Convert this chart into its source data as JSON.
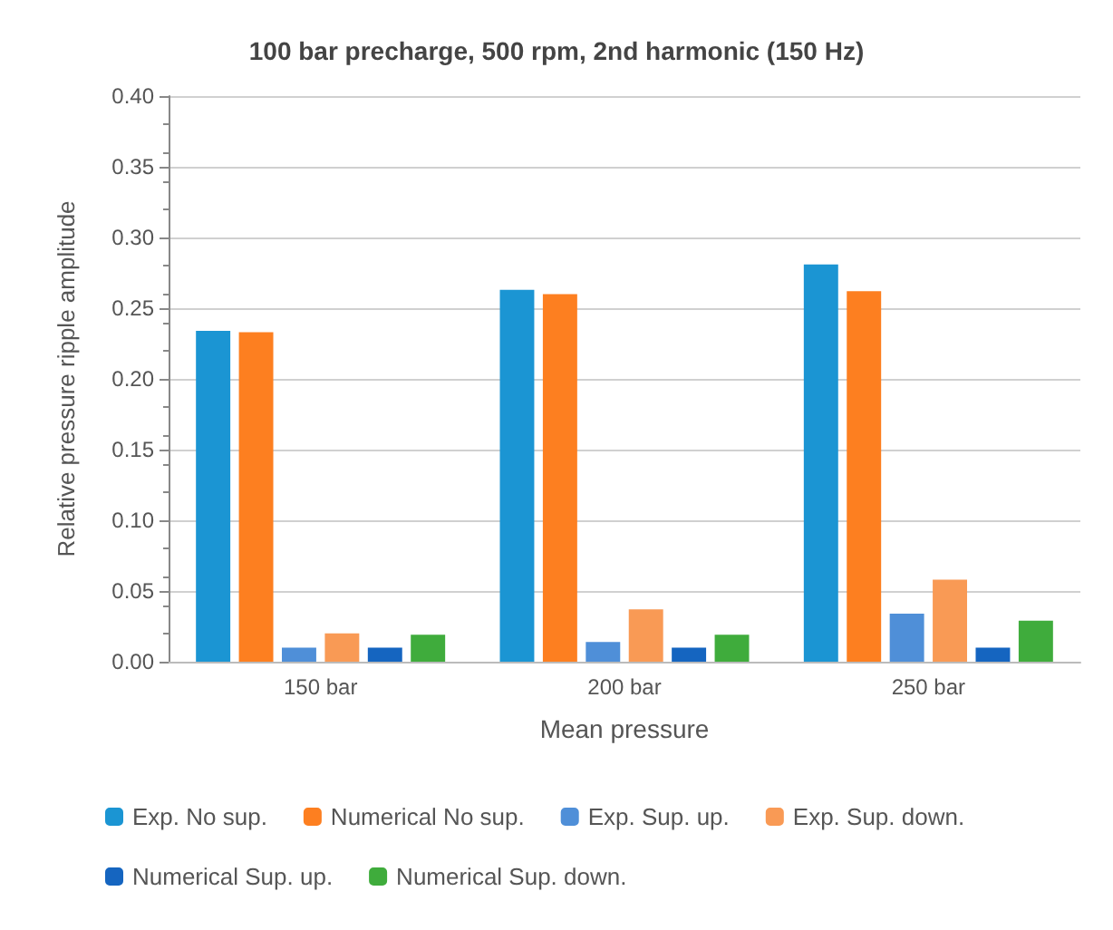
{
  "chart_data": {
    "type": "bar",
    "title": "100 bar precharge, 500 rpm, 2nd harmonic (150 Hz)",
    "xlabel": "Mean pressure",
    "ylabel": "Relative pressure ripple amplitude",
    "categories": [
      "150 bar",
      "200 bar",
      "250 bar"
    ],
    "series": [
      {
        "name": "Exp. No sup.",
        "color": "#1b95d3",
        "values": [
          0.234,
          0.263,
          0.281
        ]
      },
      {
        "name": "Numerical No sup.",
        "color": "#fd7f20",
        "values": [
          0.233,
          0.26,
          0.262
        ]
      },
      {
        "name": "Exp. Sup. up.",
        "color": "#4f8fd8",
        "values": [
          0.01,
          0.014,
          0.034
        ]
      },
      {
        "name": "Exp. Sup. down.",
        "color": "#f99a55",
        "values": [
          0.02,
          0.037,
          0.058
        ]
      },
      {
        "name": "Numerical Sup. up.",
        "color": "#1565c0",
        "values": [
          0.01,
          0.01,
          0.01
        ]
      },
      {
        "name": "Numerical Sup. down.",
        "color": "#3fac3c",
        "values": [
          0.019,
          0.019,
          0.029
        ]
      }
    ],
    "ylim": [
      0,
      0.4
    ],
    "yticks": [
      {
        "value": 0,
        "label": "0.00"
      },
      0.05,
      {
        "value": 0.1,
        "label": "0.10"
      },
      0.15,
      {
        "value": 0.2,
        "label": "0.20"
      },
      0.25,
      {
        "value": 0.3,
        "label": "0.30"
      },
      0.35,
      {
        "value": 0.4,
        "label": "0.40"
      }
    ],
    "grid": "y",
    "legend": "bottom"
  }
}
